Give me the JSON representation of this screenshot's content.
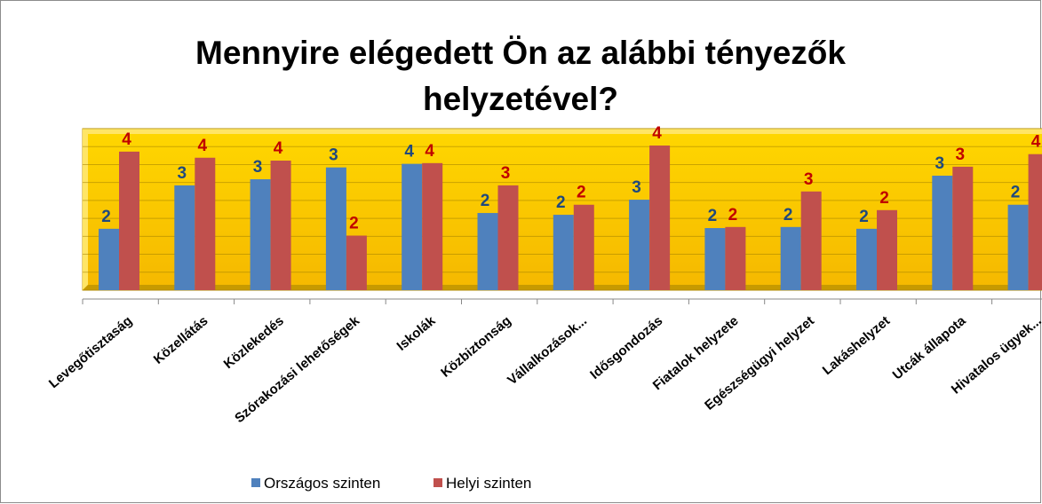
{
  "chart_data": {
    "type": "bar",
    "title": "Mennyire elégedett Ön az alábbi tényezők helyzetével?",
    "categories": [
      "Levegőtisztaság",
      "Közellátás",
      "Közlekedés",
      "Szórakozási lehetőségek",
      "Iskolák",
      "Közbiztonság",
      "Vállalkozások...",
      "Idősgondozás",
      "Fiatalok helyzete",
      "Egészségügyi helyzet",
      "Lakáshelyzet",
      "Utcák állapota",
      "Hivatalos ügyek..."
    ],
    "series": [
      {
        "name": "Országos szinten",
        "color": "#4f81bd",
        "values": [
          1.71,
          2.92,
          3.09,
          3.42,
          3.52,
          2.15,
          2.1,
          2.52,
          1.73,
          1.76,
          1.71,
          3.19,
          2.38
        ],
        "value_labels": [
          "2",
          "3",
          "3",
          "3",
          "4",
          "2",
          "2",
          "3",
          "2",
          "2",
          "2",
          "3",
          "2"
        ]
      },
      {
        "name": "Helyi szinten",
        "color": "#c0504d",
        "values": [
          3.86,
          3.69,
          3.61,
          1.52,
          3.54,
          2.92,
          2.38,
          4.03,
          1.76,
          2.75,
          2.23,
          3.44,
          3.79
        ],
        "value_labels": [
          "4",
          "4",
          "4",
          "2",
          "4",
          "3",
          "2",
          "4",
          "2",
          "3",
          "2",
          "3",
          "4"
        ]
      }
    ],
    "ylim": [
      0,
      4.5
    ],
    "yticks": [
      0,
      0.5,
      1,
      1.5,
      2,
      2.5,
      3,
      3.5,
      4,
      4.5
    ],
    "grid": true,
    "legend": "bottom"
  }
}
